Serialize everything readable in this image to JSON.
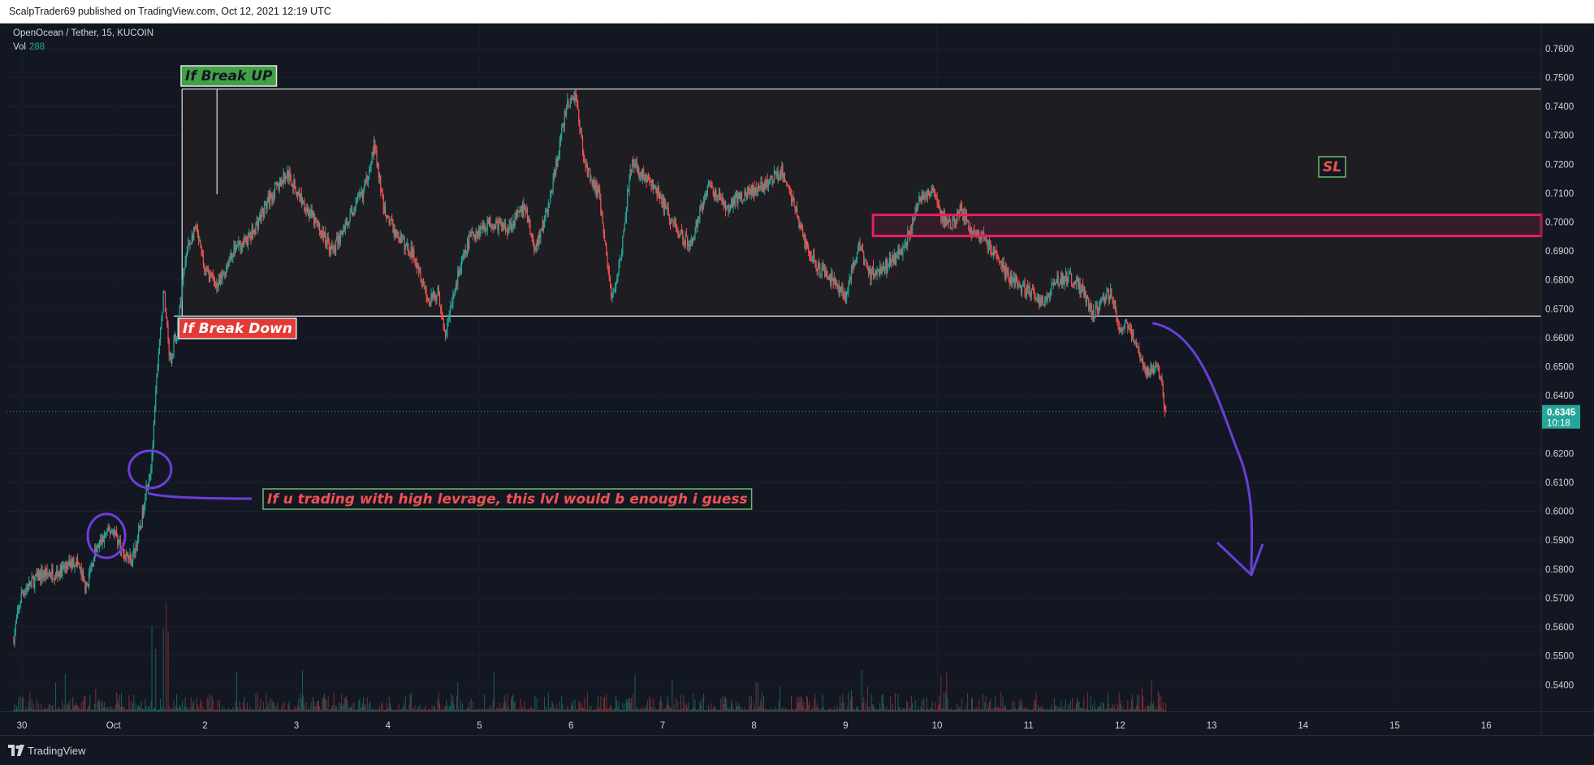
{
  "header": {
    "publish_line": "ScalpTrader69 published on TradingView.com, Oct 12, 2021 12:19 UTC"
  },
  "legend": {
    "symbol": "OpenOcean / Tether, 15, KUCOIN",
    "vol_label": "Vol",
    "vol_value": "288"
  },
  "footer": {
    "brand": "TradingView"
  },
  "price_tag": {
    "price": "0.6345",
    "countdown": "10:18"
  },
  "colors": {
    "background": "#131722",
    "up": "#26a69a",
    "down": "#ef5350",
    "annotation_purple": "#6a3fd8",
    "zone_pink": "#e91e63",
    "label_green": "#4caf50"
  },
  "chart_data": {
    "type": "candlestick",
    "symbol": "OpenOcean / Tether",
    "interval": "15",
    "exchange": "KUCOIN",
    "x_axis": {
      "tick_labels": [
        "30",
        "Oct",
        "2",
        "3",
        "4",
        "5",
        "6",
        "7",
        "8",
        "9",
        "10",
        "11",
        "12",
        "13",
        "14",
        "15",
        "16"
      ]
    },
    "y_axis": {
      "ylim": [
        0.536,
        0.764
      ],
      "tick_labels": [
        "0.7600",
        "0.7500",
        "0.7400",
        "0.7300",
        "0.7200",
        "0.7100",
        "0.7000",
        "0.6900",
        "0.6800",
        "0.6700",
        "0.6600",
        "0.6500",
        "0.6400",
        "0.6200",
        "0.6100",
        "0.6000",
        "0.5900",
        "0.5800",
        "0.5700",
        "0.5600",
        "0.5500",
        "0.5400"
      ],
      "position": "right"
    },
    "price_path": [
      {
        "t": 29.9,
        "p": 0.555
      },
      {
        "t": 30.0,
        "p": 0.572
      },
      {
        "t": 30.2,
        "p": 0.578
      },
      {
        "t": 30.4,
        "p": 0.579
      },
      {
        "t": 30.6,
        "p": 0.583
      },
      {
        "t": 30.7,
        "p": 0.573
      },
      {
        "t": 30.8,
        "p": 0.586
      },
      {
        "t": 30.92,
        "p": 0.592
      },
      {
        "t": 31.0,
        "p": 0.594
      },
      {
        "t": 31.1,
        "p": 0.586
      },
      {
        "t": 31.2,
        "p": 0.583
      },
      {
        "t": 31.3,
        "p": 0.595
      },
      {
        "t": 31.35,
        "p": 0.607
      },
      {
        "t": 31.42,
        "p": 0.617
      },
      {
        "t": 31.48,
        "p": 0.65
      },
      {
        "t": 31.55,
        "p": 0.676
      },
      {
        "t": 31.62,
        "p": 0.652
      },
      {
        "t": 31.7,
        "p": 0.664
      },
      {
        "t": 31.8,
        "p": 0.69
      },
      {
        "t": 31.9,
        "p": 0.698
      },
      {
        "t": 32.0,
        "p": 0.683
      },
      {
        "t": 32.15,
        "p": 0.678
      },
      {
        "t": 32.3,
        "p": 0.69
      },
      {
        "t": 32.5,
        "p": 0.695
      },
      {
        "t": 32.7,
        "p": 0.708
      },
      {
        "t": 32.9,
        "p": 0.717
      },
      {
        "t": 33.0,
        "p": 0.711
      },
      {
        "t": 33.2,
        "p": 0.7
      },
      {
        "t": 33.4,
        "p": 0.69
      },
      {
        "t": 33.55,
        "p": 0.7
      },
      {
        "t": 33.75,
        "p": 0.712
      },
      {
        "t": 33.85,
        "p": 0.727
      },
      {
        "t": 33.95,
        "p": 0.705
      },
      {
        "t": 34.1,
        "p": 0.695
      },
      {
        "t": 34.3,
        "p": 0.688
      },
      {
        "t": 34.45,
        "p": 0.672
      },
      {
        "t": 34.55,
        "p": 0.676
      },
      {
        "t": 34.62,
        "p": 0.66
      },
      {
        "t": 34.75,
        "p": 0.68
      },
      {
        "t": 34.9,
        "p": 0.695
      },
      {
        "t": 35.1,
        "p": 0.7
      },
      {
        "t": 35.3,
        "p": 0.698
      },
      {
        "t": 35.5,
        "p": 0.705
      },
      {
        "t": 35.6,
        "p": 0.69
      },
      {
        "t": 35.75,
        "p": 0.705
      },
      {
        "t": 35.85,
        "p": 0.722
      },
      {
        "t": 35.95,
        "p": 0.74
      },
      {
        "t": 36.05,
        "p": 0.744
      },
      {
        "t": 36.15,
        "p": 0.72
      },
      {
        "t": 36.3,
        "p": 0.71
      },
      {
        "t": 36.38,
        "p": 0.69
      },
      {
        "t": 36.45,
        "p": 0.673
      },
      {
        "t": 36.55,
        "p": 0.69
      },
      {
        "t": 36.65,
        "p": 0.72
      },
      {
        "t": 36.8,
        "p": 0.716
      },
      {
        "t": 36.95,
        "p": 0.71
      },
      {
        "t": 37.1,
        "p": 0.7
      },
      {
        "t": 37.3,
        "p": 0.692
      },
      {
        "t": 37.5,
        "p": 0.713
      },
      {
        "t": 37.7,
        "p": 0.705
      },
      {
        "t": 37.9,
        "p": 0.71
      },
      {
        "t": 38.1,
        "p": 0.712
      },
      {
        "t": 38.3,
        "p": 0.718
      },
      {
        "t": 38.45,
        "p": 0.705
      },
      {
        "t": 38.55,
        "p": 0.693
      },
      {
        "t": 38.7,
        "p": 0.684
      },
      {
        "t": 38.85,
        "p": 0.68
      },
      {
        "t": 39.0,
        "p": 0.675
      },
      {
        "t": 39.15,
        "p": 0.692
      },
      {
        "t": 39.25,
        "p": 0.682
      },
      {
        "t": 39.45,
        "p": 0.685
      },
      {
        "t": 39.65,
        "p": 0.692
      },
      {
        "t": 39.82,
        "p": 0.709
      },
      {
        "t": 39.95,
        "p": 0.712
      },
      {
        "t": 40.05,
        "p": 0.702
      },
      {
        "t": 40.15,
        "p": 0.698
      },
      {
        "t": 40.25,
        "p": 0.704
      },
      {
        "t": 40.4,
        "p": 0.696
      },
      {
        "t": 40.5,
        "p": 0.695
      },
      {
        "t": 40.6,
        "p": 0.69
      },
      {
        "t": 40.8,
        "p": 0.68
      },
      {
        "t": 41.0,
        "p": 0.676
      },
      {
        "t": 41.15,
        "p": 0.672
      },
      {
        "t": 41.3,
        "p": 0.68
      },
      {
        "t": 41.45,
        "p": 0.681
      },
      {
        "t": 41.6,
        "p": 0.676
      },
      {
        "t": 41.7,
        "p": 0.668
      },
      {
        "t": 41.8,
        "p": 0.672
      },
      {
        "t": 41.9,
        "p": 0.676
      },
      {
        "t": 42.0,
        "p": 0.662
      },
      {
        "t": 42.1,
        "p": 0.665
      },
      {
        "t": 42.18,
        "p": 0.656
      },
      {
        "t": 42.3,
        "p": 0.648
      },
      {
        "t": 42.4,
        "p": 0.652
      },
      {
        "t": 42.45,
        "p": 0.645
      },
      {
        "t": 42.5,
        "p": 0.6345
      }
    ],
    "last_price": 0.6345,
    "annotations": [
      {
        "type": "label",
        "text": "If Break UP",
        "color": "green"
      },
      {
        "type": "label",
        "text": "If Break Down",
        "color": "red"
      },
      {
        "type": "label",
        "text": "If u trading with high levrage, this lvl would b enough i guess",
        "color": "red"
      },
      {
        "type": "label",
        "text": "SL",
        "color": "red"
      },
      {
        "type": "range_box",
        "top": 0.746,
        "bottom": 0.6675,
        "from_t": 31.75
      },
      {
        "type": "zone",
        "top": 0.7025,
        "bottom": 0.6952,
        "from_t": 39.3,
        "color": "pink"
      },
      {
        "type": "projection_arrow",
        "from": {
          "t": 42.0,
          "p": 0.667
        },
        "to": {
          "t": 43.7,
          "p": 0.578
        }
      },
      {
        "type": "circle",
        "t": 31.4,
        "p": 0.6145
      },
      {
        "type": "circle",
        "t": 30.95,
        "p": 0.5915
      }
    ]
  }
}
